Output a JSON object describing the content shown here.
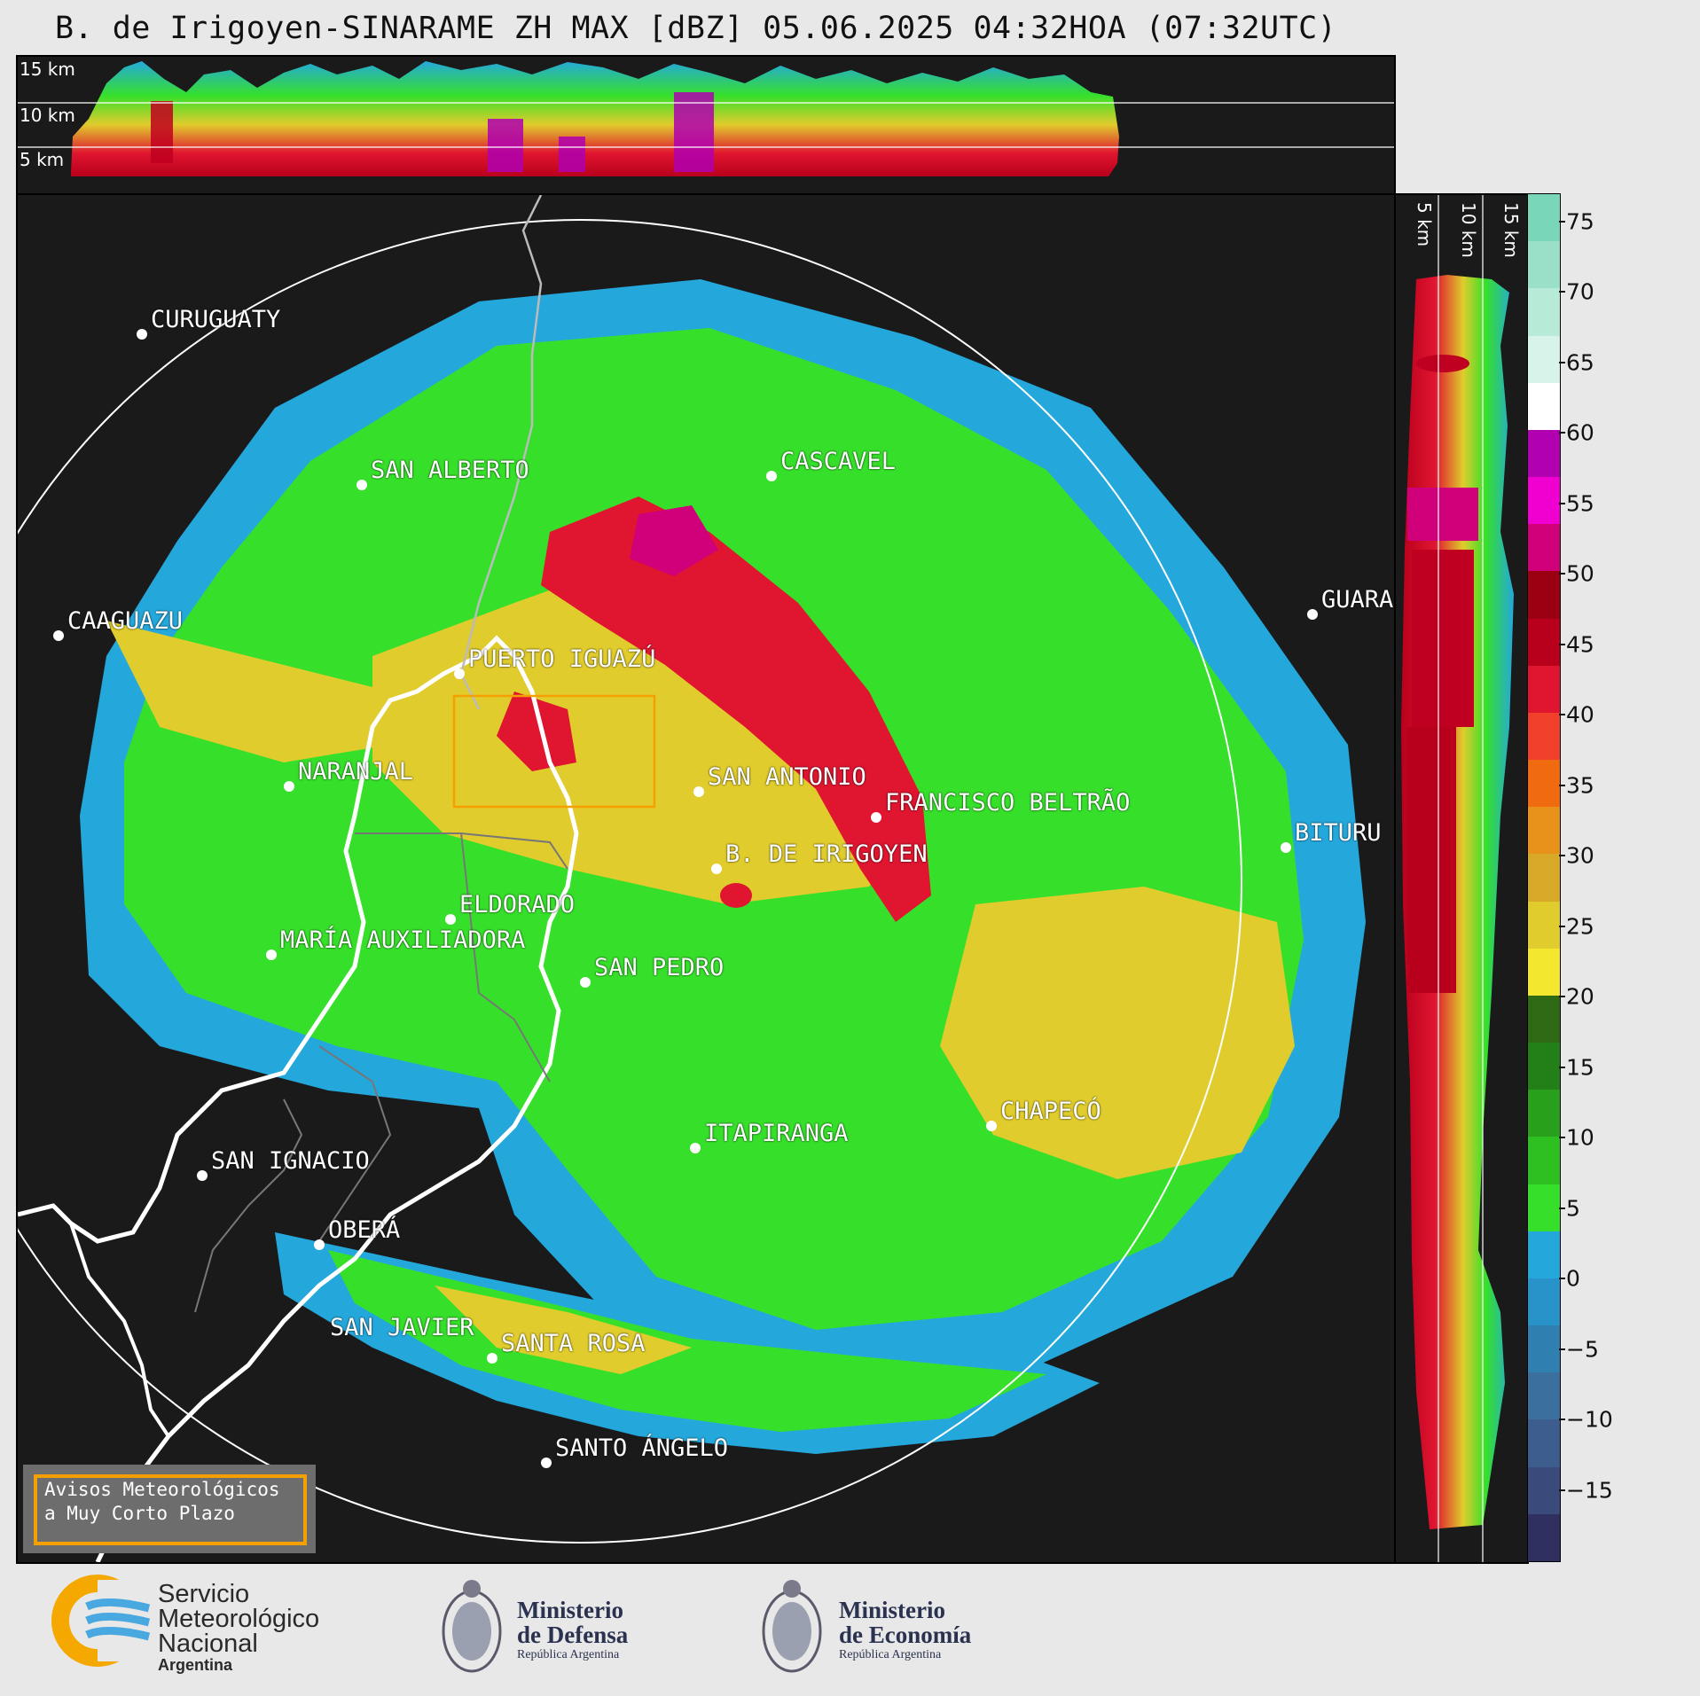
{
  "title": "B. de Irigoyen-SINARAME ZH MAX [dBZ] 05.06.2025 04:32HOA (07:32UTC)",
  "top_panel": {
    "height_labels": [
      "15 km",
      "10 km",
      "5 km"
    ]
  },
  "right_panel": {
    "height_labels": [
      "5 km",
      "10 km",
      "15 km"
    ]
  },
  "colorbar": {
    "ticks": [
      "75",
      "70",
      "65",
      "60",
      "55",
      "50",
      "45",
      "40",
      "35",
      "30",
      "25",
      "20",
      "15",
      "10",
      "5",
      "0",
      "−5",
      "−10",
      "−15"
    ],
    "colors": [
      "#2f3060",
      "#3a4a7a",
      "#3d5d8e",
      "#3a6f9e",
      "#2f80b0",
      "#2893c8",
      "#24a8dc",
      "#36e02a",
      "#2ec020",
      "#29a01c",
      "#238018",
      "#2e6a14",
      "#f3e82e",
      "#e0cc2c",
      "#d8a828",
      "#e8921c",
      "#f06a10",
      "#f0402a",
      "#e01530",
      "#b8001c",
      "#9a0012",
      "#d0007a",
      "#f000d0",
      "#b000b0",
      "#ffffff",
      "#d8f3ea",
      "#b8ead8",
      "#9ae0c8",
      "#7ad6b8"
    ],
    "value_range": [
      -20,
      77
    ]
  },
  "cities": [
    {
      "name": "CURUGUATY"
    },
    {
      "name": "SAN ALBERTO"
    },
    {
      "name": "CASCAVEL"
    },
    {
      "name": "CAAGUAZU"
    },
    {
      "name": "GUARA"
    },
    {
      "name": "PUERTO IGUAZÚ"
    },
    {
      "name": "NARANJAL"
    },
    {
      "name": "SAN ANTONIO"
    },
    {
      "name": "FRANCISCO BELTRÃO"
    },
    {
      "name": "B. DE IRIGOYEN"
    },
    {
      "name": "BITURU"
    },
    {
      "name": "ELDORADO"
    },
    {
      "name": "MARÍA AUXILIADORA"
    },
    {
      "name": "SAN PEDRO"
    },
    {
      "name": "CHAPECÓ"
    },
    {
      "name": "ITAPIRANGA"
    },
    {
      "name": "SAN IGNACIO"
    },
    {
      "name": "OBERÁ"
    },
    {
      "name": "SAN JAVIER"
    },
    {
      "name": "SANTA ROSA"
    },
    {
      "name": "SANTO ÁNGELO"
    }
  ],
  "warning_box": {
    "line1": "Avisos Meteorológicos",
    "line2": "a Muy Corto Plazo"
  },
  "logos": {
    "smn": {
      "line1": "Servicio",
      "line2": "Meteorológico",
      "line3": "Nacional",
      "line4": "Argentina"
    },
    "defensa": {
      "line1": "Ministerio",
      "line2": "de Defensa",
      "line3": "República Argentina"
    },
    "economia": {
      "line1": "Ministerio",
      "line2": "de Economía",
      "line3": "República Argentina"
    }
  }
}
